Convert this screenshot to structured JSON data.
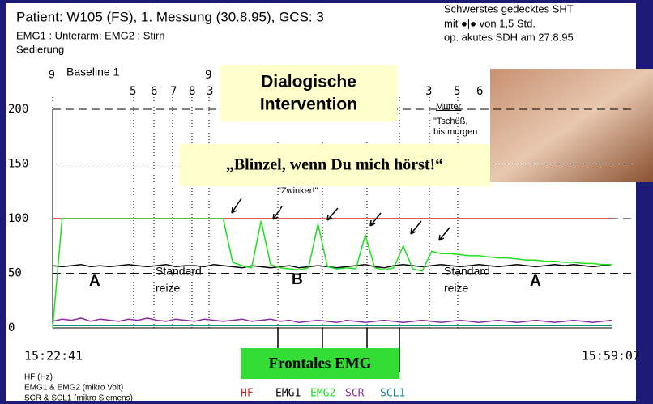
{
  "chart_data": {
    "type": "line",
    "title": "Patient: W105 (FS), 1. Messung (30.8.95), GCS: 3",
    "subtitle": [
      "EMG1 : Unterarm;  EMG2 : Stirn",
      "Sedierung"
    ],
    "notes": [
      "Schwerstes gedecktes SHT",
      "mit   ●|●  von 1,5 Std.",
      "op. akutes SDH am 27.8.95"
    ],
    "units": [
      "HF (Hz)",
      "EMG1 & EMG2 (mikro Volt)",
      "SCR & SCL1 (mikro Siemens)"
    ],
    "annotations": [
      "9",
      "Baseline 1",
      "5",
      "6",
      "7",
      "8",
      "3",
      "9",
      "3",
      "5",
      "6",
      "Dialogische",
      "Intervention",
      "„Blinzel, wenn Du mich hörst!“",
      "\"Zwinker!\"",
      "Mutter",
      "\"Tschüß,",
      "bis morgen",
      "A",
      "B",
      "A",
      "Standard",
      "reize",
      "Standard",
      "reize",
      "Frontales EMG"
    ],
    "categories": [
      "15:22:41",
      null,
      null,
      null,
      null,
      null,
      null,
      null,
      null,
      null,
      null,
      null,
      null,
      null,
      null,
      null,
      null,
      null,
      null,
      null,
      null,
      null,
      null,
      null,
      null,
      null,
      null,
      null,
      null,
      null,
      null,
      null,
      null,
      null,
      null,
      null,
      null,
      null,
      null,
      null,
      null,
      null,
      null,
      null,
      null,
      null,
      null,
      null,
      null,
      null,
      null,
      null,
      null,
      null,
      null,
      null,
      null,
      null,
      null,
      "15:59:07"
    ],
    "series": [
      {
        "name": "HF",
        "color": "#e02020",
        "values": [
          100,
          100,
          100,
          100,
          100,
          100,
          100,
          100,
          100,
          100,
          100,
          100,
          100,
          100,
          100,
          100,
          100,
          100,
          100,
          100,
          100,
          100,
          100,
          100,
          100,
          100,
          100,
          100,
          100,
          100,
          100,
          100,
          100,
          100,
          100,
          100,
          100,
          100,
          100,
          100,
          100,
          100,
          100,
          100,
          100,
          100,
          100,
          100,
          100,
          100,
          100,
          100,
          100,
          100,
          100,
          100,
          100,
          100,
          100,
          100
        ]
      },
      {
        "name": "EMG1",
        "color": "#000000",
        "values": [
          57,
          56,
          57,
          58,
          56,
          57,
          56,
          57,
          58,
          57,
          56,
          57,
          58,
          56,
          57,
          57,
          56,
          58,
          57,
          56,
          55,
          57,
          56,
          55,
          56,
          57,
          55,
          56,
          57,
          56,
          55,
          56,
          57,
          58,
          56,
          55,
          57,
          58,
          57,
          56,
          57,
          58,
          57,
          56,
          57,
          58,
          57,
          56,
          57,
          58,
          57,
          56,
          57,
          58,
          57,
          58,
          57,
          56,
          57,
          58
        ]
      },
      {
        "name": "EMG2",
        "color": "#22dd22",
        "values": [
          0,
          100,
          100,
          100,
          100,
          100,
          100,
          100,
          100,
          100,
          100,
          100,
          100,
          100,
          100,
          100,
          100,
          100,
          100,
          60,
          57,
          55,
          98,
          58,
          55,
          54,
          53,
          55,
          95,
          56,
          54,
          55,
          54,
          85,
          55,
          53,
          55,
          75,
          54,
          52,
          70,
          68,
          68,
          67,
          66,
          66,
          65,
          64,
          64,
          63,
          62,
          62,
          61,
          61,
          60,
          60,
          59,
          59,
          58,
          58
        ]
      },
      {
        "name": "SCR",
        "color": "#8a2aa0",
        "values": [
          6,
          8,
          7,
          9,
          6,
          8,
          7,
          6,
          8,
          7,
          9,
          7,
          6,
          8,
          7,
          6,
          8,
          7,
          6,
          7,
          8,
          6,
          7,
          8,
          6,
          7,
          5,
          6,
          7,
          6,
          5,
          7,
          6,
          5,
          6,
          7,
          6,
          5,
          6,
          7,
          6,
          5,
          6,
          7,
          6,
          5,
          6,
          7,
          6,
          5,
          6,
          7,
          6,
          5,
          6,
          7,
          6,
          5,
          6,
          7
        ]
      },
      {
        "name": "SCL1",
        "color": "#108888",
        "values": [
          2,
          2,
          2,
          2,
          2,
          2,
          2,
          2,
          2,
          2,
          2,
          2,
          2,
          2,
          2,
          2,
          2,
          2,
          2,
          2,
          2,
          2,
          2,
          2,
          2,
          2,
          2,
          2,
          2,
          2,
          2,
          2,
          2,
          2,
          2,
          2,
          2,
          2,
          2,
          2,
          2,
          2,
          2,
          2,
          2,
          2,
          2,
          2,
          2,
          2,
          2,
          2,
          2,
          2,
          2,
          2,
          2,
          2,
          2,
          2
        ]
      }
    ],
    "ylim": [
      0,
      200
    ],
    "yticks": [
      0,
      50,
      100,
      150,
      200
    ],
    "grid": true
  }
}
